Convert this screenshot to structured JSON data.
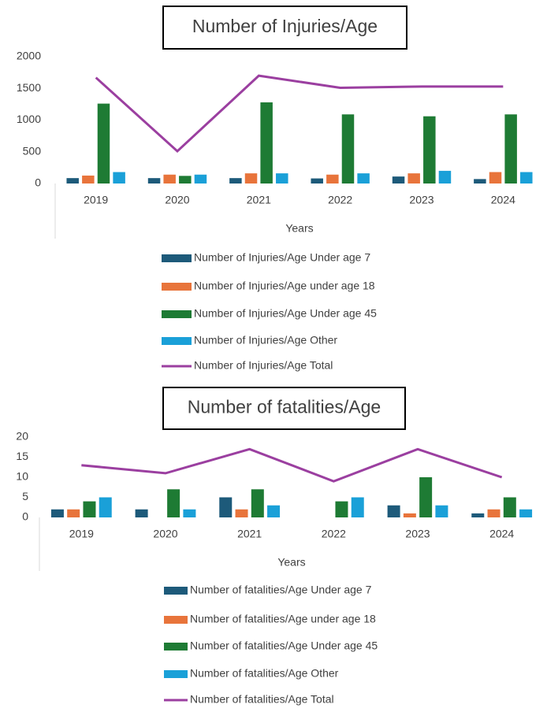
{
  "chart_data": [
    {
      "type": "bar",
      "title": "Number of Injuries/Age",
      "x_label": "Years",
      "categories": [
        "2019",
        "2020",
        "2021",
        "2022",
        "2023",
        "2024"
      ],
      "ylim": [
        0,
        2000
      ],
      "yticks": [
        0,
        500,
        1000,
        1500,
        2000
      ],
      "grid": false,
      "series": [
        {
          "name": "Number of Injuries/Age Under age 7",
          "color": "#1d5a7a",
          "values": [
            85,
            85,
            85,
            80,
            110,
            70
          ]
        },
        {
          "name": "Number of Injuries/Age under age 18",
          "color": "#e8743b",
          "values": [
            125,
            140,
            160,
            140,
            160,
            180
          ]
        },
        {
          "name": "Number of Injuries/Age Under age 45",
          "color": "#1e7b34",
          "values": [
            1260,
            120,
            1280,
            1090,
            1060,
            1090
          ]
        },
        {
          "name": "Number of Injuries/Age Other",
          "color": "#1aa0d8",
          "values": [
            180,
            140,
            160,
            160,
            200,
            180
          ]
        },
        {
          "name": "Number of Injuries/Age Total",
          "color": "#9b3fa0",
          "type": "line",
          "values": [
            1670,
            510,
            1700,
            1510,
            1530,
            1530
          ]
        }
      ]
    },
    {
      "type": "bar",
      "title": "Number of fatalities/Age",
      "x_label": "Years",
      "categories": [
        "2019",
        "2020",
        "2021",
        "2022",
        "2023",
        "2024"
      ],
      "ylim": [
        0,
        20
      ],
      "yticks": [
        0,
        5,
        10,
        15,
        20
      ],
      "grid": false,
      "series": [
        {
          "name": "Number of fatalities/Age  Under age 7",
          "color": "#1d5a7a",
          "values": [
            2,
            2,
            5,
            0,
            3,
            1
          ]
        },
        {
          "name": "Number of fatalities/Age  under age 18",
          "color": "#e8743b",
          "values": [
            2,
            0,
            2,
            0,
            1,
            2
          ]
        },
        {
          "name": "Number of fatalities/Age  Under age 45",
          "color": "#1e7b34",
          "values": [
            4,
            7,
            7,
            4,
            10,
            5
          ]
        },
        {
          "name": "Number of fatalities/Age  Other",
          "color": "#1aa0d8",
          "values": [
            5,
            2,
            3,
            5,
            3,
            2
          ]
        },
        {
          "name": "Number of fatalities/Age  Total",
          "color": "#9b3fa0",
          "type": "line",
          "values": [
            13,
            11,
            17,
            9,
            17,
            10
          ]
        }
      ]
    }
  ]
}
